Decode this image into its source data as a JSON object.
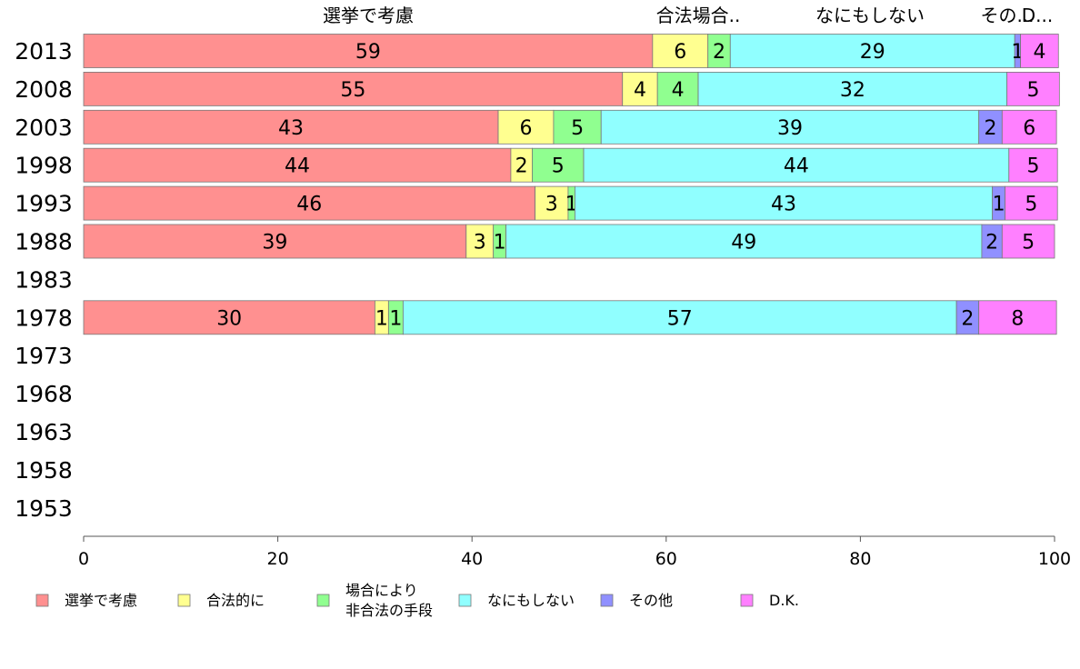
{
  "chart_data": {
    "type": "bar",
    "orientation": "horizontal",
    "stacked": true,
    "title": "",
    "xlabel": "",
    "ylabel": "",
    "xlim": [
      0,
      100
    ],
    "xticks": [
      "0",
      "20",
      "40",
      "60",
      "80",
      "100"
    ],
    "categories": [
      "2013",
      "2008",
      "2003",
      "1998",
      "1993",
      "1988",
      "1983",
      "1978",
      "1973",
      "1968",
      "1963",
      "1958",
      "1953"
    ],
    "top_labels": [
      "選挙で考慮",
      "合法場合..",
      "なにもしない",
      "その...",
      "D..."
    ],
    "series": [
      {
        "name": "選挙で考慮",
        "color": "#ff9090",
        "values": [
          58.6,
          55.5,
          42.7,
          44.0,
          46.5,
          39.4,
          null,
          30.0,
          null,
          null,
          null,
          null,
          null
        ],
        "labels": [
          "59",
          "55",
          "43",
          "44",
          "46",
          "39",
          "",
          "30",
          "",
          "",
          "",
          "",
          ""
        ]
      },
      {
        "name": "合法的に",
        "color": "#ffff90",
        "values": [
          5.7,
          3.6,
          5.7,
          2.2,
          3.4,
          2.8,
          null,
          1.4,
          null,
          null,
          null,
          null,
          null
        ],
        "labels": [
          "6",
          "4",
          "6",
          "2",
          "3",
          "3",
          "",
          "1",
          "",
          "",
          "",
          "",
          ""
        ]
      },
      {
        "name": "場合により 非合法の手段",
        "color": "#90ff90",
        "values": [
          2.3,
          4.2,
          4.9,
          5.3,
          0.7,
          1.3,
          null,
          1.5,
          null,
          null,
          null,
          null,
          null
        ],
        "labels": [
          "2",
          "4",
          "5",
          "5",
          "1",
          "1",
          "",
          "1",
          "",
          "",
          "",
          "",
          ""
        ]
      },
      {
        "name": "なにもしない",
        "color": "#90ffff",
        "values": [
          29.3,
          31.8,
          38.9,
          43.8,
          43.0,
          49.0,
          null,
          57.0,
          null,
          null,
          null,
          null,
          null
        ],
        "labels": [
          "29",
          "32",
          "39",
          "44",
          "43",
          "49",
          "",
          "57",
          "",
          "",
          "",
          "",
          ""
        ]
      },
      {
        "name": "その他",
        "color": "#9090ff",
        "values": [
          0.6,
          0.0,
          2.4,
          0.0,
          1.3,
          2.1,
          null,
          2.3,
          null,
          null,
          null,
          null,
          null
        ],
        "labels": [
          "1",
          "",
          "2",
          "",
          "1",
          "2",
          "",
          "2",
          "",
          "",
          "",
          "",
          ""
        ]
      },
      {
        "name": "D.K.",
        "color": "#ff80ff",
        "values": [
          3.9,
          5.4,
          5.6,
          5.0,
          5.4,
          5.4,
          null,
          8.0,
          null,
          null,
          null,
          null,
          null
        ],
        "labels": [
          "4",
          "5",
          "6",
          "5",
          "5",
          "5",
          "",
          "8",
          "",
          "",
          "",
          "",
          ""
        ]
      }
    ],
    "legend": {
      "placement": "bottom",
      "entries": [
        {
          "lines": [
            "選挙で考慮"
          ],
          "color": "#ff9090"
        },
        {
          "lines": [
            "合法的に"
          ],
          "color": "#ffff90"
        },
        {
          "lines": [
            "場合により",
            "非合法の手段"
          ],
          "color": "#90ff90"
        },
        {
          "lines": [
            "なにもしない"
          ],
          "color": "#90ffff"
        },
        {
          "lines": [
            "その他"
          ],
          "color": "#9090ff"
        },
        {
          "lines": [
            "D.K."
          ],
          "color": "#ff80ff"
        }
      ]
    }
  }
}
